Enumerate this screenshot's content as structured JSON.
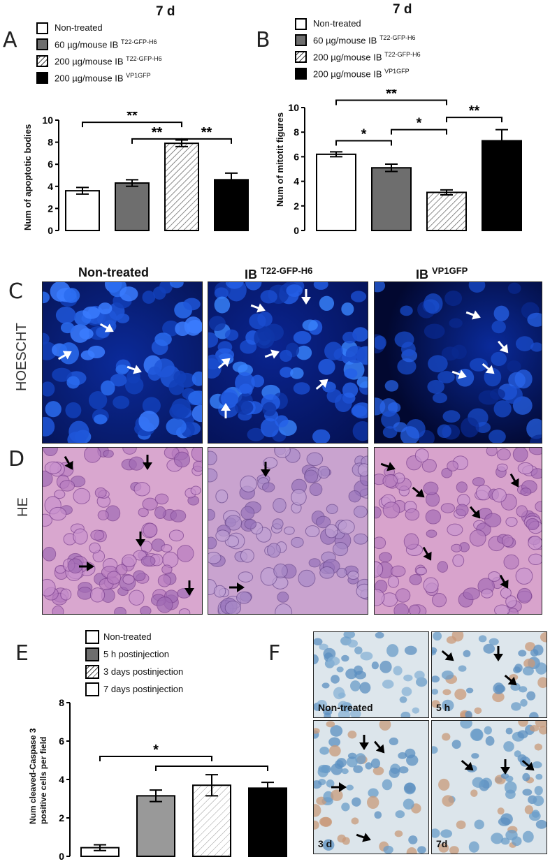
{
  "panel_labels": {
    "a": "A",
    "b": "B",
    "c": "C",
    "d": "D",
    "e": "E",
    "f": "F"
  },
  "chart_data": [
    {
      "id": "A",
      "type": "bar",
      "title": "7 d",
      "ylabel": "Num of apoptotic bodies",
      "ylim": [
        0,
        10
      ],
      "yticks": [
        "0",
        "2",
        "4",
        "6",
        "8",
        "10"
      ],
      "legend": [
        {
          "text": "Non-treated",
          "sup": ""
        },
        {
          "text": "60 µg/mouse IB ",
          "sup": "T22-GFP-H6"
        },
        {
          "text": "200 µg/mouse IB ",
          "sup": "T22-GFP-H6"
        },
        {
          "text": "200 µg/mouse IB ",
          "sup": "VP1GFP"
        }
      ],
      "values": [
        3.6,
        4.3,
        7.9,
        4.6
      ],
      "errors": [
        0.3,
        0.3,
        0.3,
        0.6
      ],
      "fills": [
        "#ffffff",
        "#6e6e6e",
        "hatch",
        "#000000"
      ],
      "significance": [
        {
          "from": 0,
          "to": 2,
          "label": "**",
          "level": 9.8
        },
        {
          "from": 1,
          "to": 2,
          "label": "**",
          "level": 8.3
        },
        {
          "from": 2,
          "to": 3,
          "label": "**",
          "level": 8.3
        }
      ]
    },
    {
      "id": "B",
      "type": "bar",
      "title": "7 d",
      "ylabel": "Num of mitotit figures",
      "ylim": [
        0,
        10
      ],
      "yticks": [
        "0",
        "2",
        "4",
        "6",
        "8",
        "10"
      ],
      "legend": [
        {
          "text": "Non-treated",
          "sup": ""
        },
        {
          "text": "60 µg/mouse IB ",
          "sup": "T22-GFP-H6"
        },
        {
          "text": "200 µg/mouse IB ",
          "sup": "T22-GFP-H6"
        },
        {
          "text": "200 µg/mouse IB ",
          "sup": "VP1GFP"
        }
      ],
      "values": [
        6.2,
        5.1,
        3.1,
        7.3
      ],
      "errors": [
        0.2,
        0.3,
        0.2,
        0.9
      ],
      "fills": [
        "#ffffff",
        "#6e6e6e",
        "hatch",
        "#000000"
      ],
      "significance": [
        {
          "from": 0,
          "to": 2,
          "label": "**",
          "level": 10.6
        },
        {
          "from": 0,
          "to": 1,
          "label": "*",
          "level": 7.3
        },
        {
          "from": 1,
          "to": 2,
          "label": "*",
          "level": 8.2
        },
        {
          "from": 2,
          "to": 3,
          "label": "**",
          "level": 9.2
        }
      ]
    },
    {
      "id": "E",
      "type": "bar",
      "title": "",
      "ylabel_lines": [
        "Num cleaved-Caspase 3",
        "positive cells per field"
      ],
      "ylim": [
        0,
        8
      ],
      "yticks": [
        "0",
        "2",
        "4",
        "6",
        "8"
      ],
      "legend": [
        {
          "text": "Non-treated",
          "sup": ""
        },
        {
          "text": "5 h postinjection",
          "sup": ""
        },
        {
          "text": "3 days postinjection",
          "sup": ""
        },
        {
          "text": "7 days postinjection",
          "sup": ""
        }
      ],
      "values": [
        0.45,
        3.15,
        3.7,
        3.55
      ],
      "errors": [
        0.15,
        0.3,
        0.55,
        0.3
      ],
      "fills": [
        "#ffffff",
        "#999999",
        "hatch2",
        "#000000"
      ],
      "significance": [
        {
          "from": 0,
          "to": 2,
          "label": "*",
          "level": 5.2,
          "group_to": [
            1,
            3
          ]
        }
      ]
    }
  ],
  "micrographs": {
    "columns": [
      {
        "label": "Non-treated",
        "sup": ""
      },
      {
        "label": "IB ",
        "sup": "T22-GFP-H6"
      },
      {
        "label": "IB ",
        "sup": "VP1GFP"
      }
    ],
    "rows": [
      "HOESCHT",
      "HE"
    ],
    "ihc_labels": [
      "Non-treated",
      "5 h",
      "3 d",
      "7d"
    ]
  }
}
